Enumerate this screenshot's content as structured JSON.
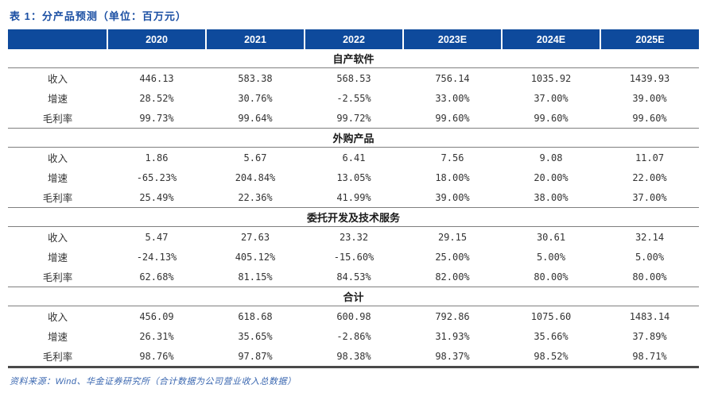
{
  "title": {
    "prefix": "表 1：",
    "text": "分产品预测（单位：百万元）"
  },
  "table": {
    "row_label_header": "",
    "columns": [
      "2020",
      "2021",
      "2022",
      "2023E",
      "2024E",
      "2025E"
    ],
    "row_labels": [
      "收入",
      "增速",
      "毛利率"
    ],
    "sections": [
      {
        "name": "自产软件",
        "rows": [
          [
            "446.13",
            "583.38",
            "568.53",
            "756.14",
            "1035.92",
            "1439.93"
          ],
          [
            "28.52%",
            "30.76%",
            "-2.55%",
            "33.00%",
            "37.00%",
            "39.00%"
          ],
          [
            "99.73%",
            "99.64%",
            "99.72%",
            "99.60%",
            "99.60%",
            "99.60%"
          ]
        ]
      },
      {
        "name": "外购产品",
        "rows": [
          [
            "1.86",
            "5.67",
            "6.41",
            "7.56",
            "9.08",
            "11.07"
          ],
          [
            "-65.23%",
            "204.84%",
            "13.05%",
            "18.00%",
            "20.00%",
            "22.00%"
          ],
          [
            "25.49%",
            "22.36%",
            "41.99%",
            "39.00%",
            "38.00%",
            "37.00%"
          ]
        ]
      },
      {
        "name": "委托开发及技术服务",
        "rows": [
          [
            "5.47",
            "27.63",
            "23.32",
            "29.15",
            "30.61",
            "32.14"
          ],
          [
            "-24.13%",
            "405.12%",
            "-15.60%",
            "25.00%",
            "5.00%",
            "5.00%"
          ],
          [
            "62.68%",
            "81.15%",
            "84.53%",
            "82.00%",
            "80.00%",
            "80.00%"
          ]
        ]
      },
      {
        "name": "合计",
        "rows": [
          [
            "456.09",
            "618.68",
            "600.98",
            "792.86",
            "1075.60",
            "1483.14"
          ],
          [
            "26.31%",
            "35.65%",
            "-2.86%",
            "31.93%",
            "35.66%",
            "37.89%"
          ],
          [
            "98.76%",
            "97.87%",
            "98.38%",
            "98.37%",
            "98.52%",
            "98.71%"
          ]
        ]
      }
    ]
  },
  "source": "资料来源：Wind、华金证券研究所（合计数据为公司营业收入总数据）",
  "colors": {
    "header_bg": "#0e4a9c",
    "title_blue": "#1b4fa3",
    "source_blue": "#3a67b0",
    "section_line": "#7f7f7f",
    "bottom_line": "#4a4a4a",
    "data_text": "#333333"
  }
}
